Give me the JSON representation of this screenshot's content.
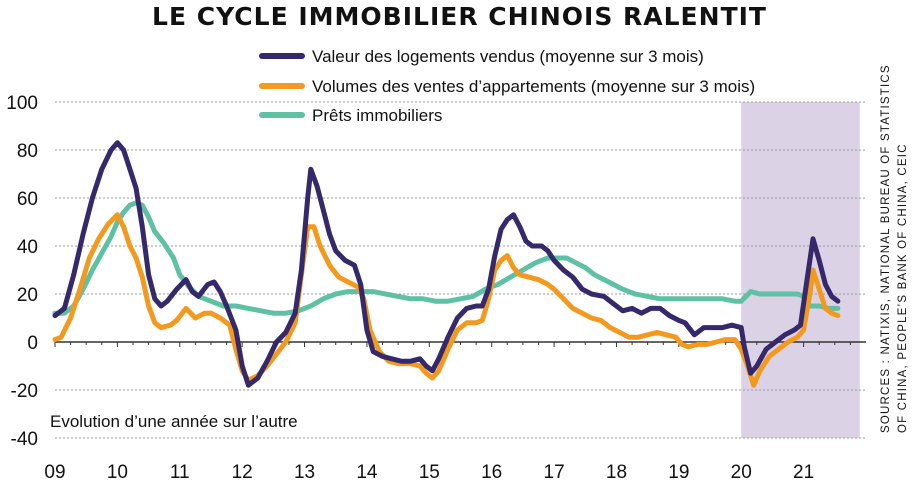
{
  "title": "LE CYCLE IMMOBILIER CHINOIS RALENTIT",
  "annotation": "Evolution d’une année sur l’autre",
  "sources_line1": "SOURCES : NATIXIS, NATIONAL BUREAU OF STATISTICS",
  "sources_line2": "OF CHINA, PEOPLE’S BANK OF CHINA, CEIC",
  "chart_data": {
    "type": "line",
    "title": "LE CYCLE IMMOBILIER CHINOIS RALENTIT",
    "ylim": [
      -40,
      100
    ],
    "y_ticks": [
      "100",
      "80",
      "60",
      "40",
      "20",
      "0",
      "-20",
      "-40"
    ],
    "xlim": [
      2009,
      2022.0
    ],
    "x_ticks": [
      "09",
      "10",
      "11",
      "12",
      "13",
      "14",
      "15",
      "16",
      "17",
      "18",
      "19",
      "20",
      "21"
    ],
    "grid": "horizontal",
    "shaded_period": [
      2020.0,
      2021.9
    ],
    "legend_position": "top-center",
    "series": [
      {
        "name": "Valeur des logements vendus (moyenne sur 3 mois)",
        "color": "#35296b",
        "points": [
          [
            2009.0,
            11
          ],
          [
            2009.15,
            14
          ],
          [
            2009.3,
            28
          ],
          [
            2009.45,
            45
          ],
          [
            2009.6,
            60
          ],
          [
            2009.75,
            72
          ],
          [
            2009.9,
            80
          ],
          [
            2010.0,
            83
          ],
          [
            2010.1,
            80
          ],
          [
            2010.2,
            72
          ],
          [
            2010.3,
            64
          ],
          [
            2010.4,
            48
          ],
          [
            2010.5,
            28
          ],
          [
            2010.6,
            18
          ],
          [
            2010.7,
            15
          ],
          [
            2010.8,
            17
          ],
          [
            2010.95,
            22
          ],
          [
            2011.1,
            26
          ],
          [
            2011.2,
            21
          ],
          [
            2011.3,
            19
          ],
          [
            2011.45,
            24
          ],
          [
            2011.55,
            25
          ],
          [
            2011.65,
            21
          ],
          [
            2011.75,
            15
          ],
          [
            2011.9,
            5
          ],
          [
            2012.0,
            -10
          ],
          [
            2012.1,
            -18
          ],
          [
            2012.25,
            -15
          ],
          [
            2012.4,
            -8
          ],
          [
            2012.55,
            0
          ],
          [
            2012.7,
            4
          ],
          [
            2012.85,
            12
          ],
          [
            2012.95,
            30
          ],
          [
            2013.05,
            60
          ],
          [
            2013.1,
            72
          ],
          [
            2013.2,
            65
          ],
          [
            2013.3,
            55
          ],
          [
            2013.4,
            45
          ],
          [
            2013.5,
            38
          ],
          [
            2013.65,
            34
          ],
          [
            2013.8,
            32
          ],
          [
            2013.9,
            24
          ],
          [
            2014.0,
            5
          ],
          [
            2014.1,
            -4
          ],
          [
            2014.25,
            -6
          ],
          [
            2014.4,
            -7
          ],
          [
            2014.55,
            -8
          ],
          [
            2014.7,
            -8
          ],
          [
            2014.85,
            -7
          ],
          [
            2014.95,
            -10
          ],
          [
            2015.05,
            -12
          ],
          [
            2015.15,
            -7
          ],
          [
            2015.3,
            2
          ],
          [
            2015.45,
            10
          ],
          [
            2015.6,
            14
          ],
          [
            2015.75,
            15
          ],
          [
            2015.85,
            15
          ],
          [
            2015.95,
            22
          ],
          [
            2016.05,
            36
          ],
          [
            2016.15,
            47
          ],
          [
            2016.25,
            51
          ],
          [
            2016.35,
            53
          ],
          [
            2016.45,
            48
          ],
          [
            2016.55,
            42
          ],
          [
            2016.65,
            40
          ],
          [
            2016.8,
            40
          ],
          [
            2016.9,
            38
          ],
          [
            2017.0,
            34
          ],
          [
            2017.15,
            30
          ],
          [
            2017.3,
            27
          ],
          [
            2017.45,
            22
          ],
          [
            2017.6,
            20
          ],
          [
            2017.8,
            19
          ],
          [
            2017.95,
            16
          ],
          [
            2018.1,
            13
          ],
          [
            2018.25,
            14
          ],
          [
            2018.4,
            12
          ],
          [
            2018.55,
            14
          ],
          [
            2018.7,
            14
          ],
          [
            2018.85,
            11
          ],
          [
            2019.0,
            9
          ],
          [
            2019.1,
            8
          ],
          [
            2019.25,
            3
          ],
          [
            2019.4,
            6
          ],
          [
            2019.55,
            6
          ],
          [
            2019.7,
            6
          ],
          [
            2019.85,
            7
          ],
          [
            2020.0,
            6
          ],
          [
            2020.05,
            -2
          ],
          [
            2020.15,
            -13
          ],
          [
            2020.25,
            -10
          ],
          [
            2020.4,
            -3
          ],
          [
            2020.55,
            0
          ],
          [
            2020.7,
            3
          ],
          [
            2020.85,
            5
          ],
          [
            2020.95,
            7
          ],
          [
            2021.05,
            25
          ],
          [
            2021.15,
            43
          ],
          [
            2021.25,
            34
          ],
          [
            2021.35,
            24
          ],
          [
            2021.45,
            19
          ],
          [
            2021.55,
            17
          ]
        ]
      },
      {
        "name": "Volumes des ventes d’appartements (moyenne sur 3 mois)",
        "color": "#f39a1e",
        "points": [
          [
            2009.0,
            1
          ],
          [
            2009.1,
            2
          ],
          [
            2009.25,
            10
          ],
          [
            2009.4,
            22
          ],
          [
            2009.55,
            35
          ],
          [
            2009.7,
            43
          ],
          [
            2009.85,
            49
          ],
          [
            2010.0,
            53
          ],
          [
            2010.1,
            48
          ],
          [
            2010.2,
            40
          ],
          [
            2010.3,
            35
          ],
          [
            2010.4,
            27
          ],
          [
            2010.5,
            15
          ],
          [
            2010.6,
            8
          ],
          [
            2010.7,
            6
          ],
          [
            2010.85,
            7
          ],
          [
            2010.95,
            9
          ],
          [
            2011.1,
            14
          ],
          [
            2011.25,
            10
          ],
          [
            2011.4,
            12
          ],
          [
            2011.5,
            12
          ],
          [
            2011.65,
            10
          ],
          [
            2011.8,
            7
          ],
          [
            2011.9,
            -3
          ],
          [
            2012.0,
            -12
          ],
          [
            2012.1,
            -16
          ],
          [
            2012.25,
            -14
          ],
          [
            2012.4,
            -10
          ],
          [
            2012.55,
            -5
          ],
          [
            2012.7,
            0
          ],
          [
            2012.85,
            8
          ],
          [
            2012.95,
            28
          ],
          [
            2013.05,
            48
          ],
          [
            2013.15,
            48
          ],
          [
            2013.25,
            40
          ],
          [
            2013.4,
            32
          ],
          [
            2013.55,
            27
          ],
          [
            2013.7,
            25
          ],
          [
            2013.85,
            23
          ],
          [
            2013.95,
            18
          ],
          [
            2014.05,
            5
          ],
          [
            2014.2,
            -4
          ],
          [
            2014.35,
            -8
          ],
          [
            2014.5,
            -9
          ],
          [
            2014.7,
            -9
          ],
          [
            2014.85,
            -10
          ],
          [
            2014.95,
            -13
          ],
          [
            2015.05,
            -15
          ],
          [
            2015.15,
            -12
          ],
          [
            2015.3,
            -3
          ],
          [
            2015.45,
            5
          ],
          [
            2015.6,
            8
          ],
          [
            2015.75,
            8
          ],
          [
            2015.85,
            9
          ],
          [
            2015.95,
            18
          ],
          [
            2016.05,
            30
          ],
          [
            2016.15,
            34
          ],
          [
            2016.25,
            36
          ],
          [
            2016.35,
            31
          ],
          [
            2016.45,
            28
          ],
          [
            2016.6,
            27
          ],
          [
            2016.75,
            26
          ],
          [
            2016.9,
            24
          ],
          [
            2017.0,
            22
          ],
          [
            2017.15,
            18
          ],
          [
            2017.3,
            14
          ],
          [
            2017.45,
            12
          ],
          [
            2017.6,
            10
          ],
          [
            2017.75,
            9
          ],
          [
            2017.9,
            6
          ],
          [
            2018.05,
            4
          ],
          [
            2018.2,
            2
          ],
          [
            2018.35,
            2
          ],
          [
            2018.5,
            3
          ],
          [
            2018.65,
            4
          ],
          [
            2018.8,
            3
          ],
          [
            2018.95,
            2
          ],
          [
            2019.05,
            -1
          ],
          [
            2019.15,
            -2
          ],
          [
            2019.3,
            -1
          ],
          [
            2019.45,
            -1
          ],
          [
            2019.6,
            0
          ],
          [
            2019.75,
            1
          ],
          [
            2019.9,
            1
          ],
          [
            2020.0,
            -3
          ],
          [
            2020.1,
            -10
          ],
          [
            2020.2,
            -18
          ],
          [
            2020.3,
            -12
          ],
          [
            2020.45,
            -6
          ],
          [
            2020.6,
            -3
          ],
          [
            2020.75,
            0
          ],
          [
            2020.9,
            2
          ],
          [
            2021.0,
            5
          ],
          [
            2021.1,
            20
          ],
          [
            2021.15,
            30
          ],
          [
            2021.25,
            22
          ],
          [
            2021.35,
            14
          ],
          [
            2021.45,
            12
          ],
          [
            2021.55,
            11
          ]
        ]
      },
      {
        "name": "Prêts immobiliers",
        "color": "#5fc1a3",
        "points": [
          [
            2009.0,
            12
          ],
          [
            2009.15,
            12
          ],
          [
            2009.3,
            15
          ],
          [
            2009.45,
            22
          ],
          [
            2009.6,
            30
          ],
          [
            2009.75,
            37
          ],
          [
            2009.9,
            44
          ],
          [
            2010.0,
            50
          ],
          [
            2010.1,
            54
          ],
          [
            2010.2,
            57
          ],
          [
            2010.3,
            58
          ],
          [
            2010.4,
            57
          ],
          [
            2010.5,
            52
          ],
          [
            2010.6,
            46
          ],
          [
            2010.75,
            41
          ],
          [
            2010.9,
            35
          ],
          [
            2011.0,
            28
          ],
          [
            2011.15,
            23
          ],
          [
            2011.3,
            19
          ],
          [
            2011.5,
            17
          ],
          [
            2011.7,
            15
          ],
          [
            2011.9,
            15
          ],
          [
            2012.1,
            14
          ],
          [
            2012.3,
            13
          ],
          [
            2012.5,
            12
          ],
          [
            2012.7,
            12
          ],
          [
            2012.9,
            13
          ],
          [
            2013.1,
            15
          ],
          [
            2013.3,
            18
          ],
          [
            2013.5,
            20
          ],
          [
            2013.7,
            21
          ],
          [
            2013.9,
            21
          ],
          [
            2014.1,
            21
          ],
          [
            2014.3,
            20
          ],
          [
            2014.5,
            19
          ],
          [
            2014.7,
            18
          ],
          [
            2014.9,
            18
          ],
          [
            2015.1,
            17
          ],
          [
            2015.3,
            17
          ],
          [
            2015.5,
            18
          ],
          [
            2015.7,
            19
          ],
          [
            2015.9,
            22
          ],
          [
            2016.1,
            24
          ],
          [
            2016.3,
            27
          ],
          [
            2016.5,
            30
          ],
          [
            2016.7,
            33
          ],
          [
            2016.9,
            35
          ],
          [
            2017.05,
            35
          ],
          [
            2017.2,
            35
          ],
          [
            2017.35,
            33
          ],
          [
            2017.5,
            31
          ],
          [
            2017.65,
            28
          ],
          [
            2017.8,
            26
          ],
          [
            2017.95,
            24
          ],
          [
            2018.1,
            22
          ],
          [
            2018.3,
            20
          ],
          [
            2018.5,
            19
          ],
          [
            2018.7,
            18
          ],
          [
            2018.9,
            18
          ],
          [
            2019.1,
            18
          ],
          [
            2019.3,
            18
          ],
          [
            2019.5,
            18
          ],
          [
            2019.7,
            18
          ],
          [
            2019.9,
            17
          ],
          [
            2020.0,
            17
          ],
          [
            2020.15,
            21
          ],
          [
            2020.3,
            20
          ],
          [
            2020.5,
            20
          ],
          [
            2020.7,
            20
          ],
          [
            2020.9,
            20
          ],
          [
            2021.0,
            19
          ],
          [
            2021.1,
            15
          ],
          [
            2021.25,
            15
          ],
          [
            2021.4,
            14
          ],
          [
            2021.55,
            14
          ]
        ]
      }
    ]
  }
}
